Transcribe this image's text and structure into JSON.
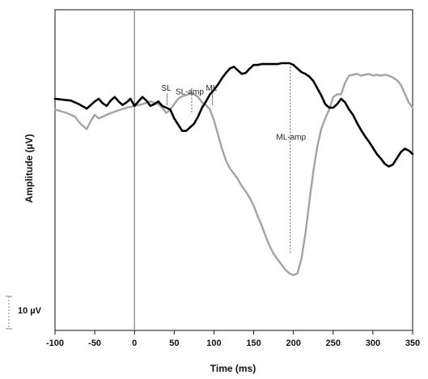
{
  "chart_data": {
    "type": "line",
    "xlabel": "Time (ms)",
    "ylabel": "Amplitude (µV)",
    "xlim": [
      -100,
      350
    ],
    "x_ticks": [
      -100,
      -50,
      0,
      50,
      100,
      150,
      200,
      250,
      300,
      350
    ],
    "ylim": [
      -26,
      10
    ],
    "grid": false,
    "scale_bar": {
      "label": "10 µV",
      "value": 10
    },
    "vertical_reference_x": 0,
    "annotations": [
      {
        "label": "SL",
        "x": 40,
        "y": 0.9
      },
      {
        "label": "ML",
        "x": 97,
        "y": 0.9
      },
      {
        "label": "SL-amp",
        "x": 72,
        "y": 0.5
      },
      {
        "label": "ML-amp",
        "x": 196,
        "y": -4.6
      }
    ],
    "amp_markers": [
      {
        "x": 72,
        "from": 1.2,
        "to": -1.6
      },
      {
        "x": 196,
        "from": 3.6,
        "to": -17.4
      }
    ],
    "series": [
      {
        "color": "#000000",
        "x": [
          -100,
          -80,
          -70,
          -60,
          -55,
          -50,
          -45,
          -40,
          -35,
          -30,
          -25,
          -20,
          -15,
          -10,
          -5,
          0,
          5,
          10,
          15,
          20,
          25,
          30,
          35,
          40,
          45,
          50,
          55,
          60,
          65,
          70,
          75,
          80,
          85,
          90,
          95,
          100,
          105,
          110,
          115,
          120,
          125,
          130,
          135,
          140,
          145,
          150,
          155,
          160,
          165,
          170,
          175,
          180,
          185,
          190,
          195,
          200,
          205,
          210,
          215,
          220,
          225,
          230,
          235,
          240,
          245,
          250,
          255,
          260,
          265,
          270,
          275,
          280,
          285,
          290,
          295,
          300,
          305,
          310,
          315,
          320,
          325,
          330,
          335,
          340,
          345,
          350
        ],
        "y": [
          0.0,
          -0.2,
          -0.6,
          -1.1,
          -0.7,
          -0.3,
          0.0,
          -0.5,
          -0.8,
          -0.2,
          0.2,
          -0.3,
          -0.7,
          -0.4,
          0.0,
          -0.8,
          -0.3,
          0.2,
          -0.2,
          -0.8,
          -0.6,
          -0.3,
          -0.8,
          -1.0,
          -1.2,
          -2.2,
          -2.9,
          -3.6,
          -3.6,
          -3.2,
          -2.8,
          -2.0,
          -1.0,
          -0.3,
          0.5,
          1.0,
          1.6,
          2.3,
          2.9,
          3.4,
          3.6,
          3.2,
          2.8,
          2.9,
          3.4,
          3.8,
          3.8,
          3.9,
          3.9,
          3.9,
          3.9,
          3.9,
          4.0,
          4.0,
          4.0,
          3.8,
          3.4,
          3.0,
          2.8,
          2.5,
          2.0,
          1.2,
          0.4,
          -0.6,
          -1.0,
          -1.0,
          -0.6,
          0.0,
          -0.4,
          -1.2,
          -1.8,
          -2.7,
          -3.5,
          -4.2,
          -4.8,
          -5.5,
          -6.2,
          -6.7,
          -7.3,
          -7.6,
          -7.4,
          -6.7,
          -6.0,
          -5.6,
          -5.8,
          -6.2
        ]
      },
      {
        "color": "#a3a3a3",
        "x": [
          -100,
          -85,
          -75,
          -68,
          -60,
          -55,
          -50,
          -45,
          -40,
          -30,
          -20,
          -10,
          0,
          10,
          20,
          30,
          35,
          40,
          45,
          50,
          55,
          60,
          65,
          70,
          75,
          80,
          85,
          90,
          95,
          100,
          105,
          110,
          115,
          120,
          125,
          130,
          135,
          140,
          145,
          150,
          155,
          160,
          165,
          170,
          175,
          180,
          185,
          190,
          195,
          200,
          205,
          210,
          215,
          220,
          225,
          230,
          235,
          240,
          245,
          250,
          255,
          260,
          265,
          270,
          275,
          280,
          285,
          290,
          295,
          300,
          305,
          310,
          315,
          320,
          325,
          330,
          335,
          340,
          345,
          350
        ],
        "y": [
          -1.2,
          -1.6,
          -2.0,
          -2.8,
          -3.4,
          -2.5,
          -1.8,
          -2.2,
          -2.0,
          -1.6,
          -1.3,
          -1.0,
          -0.8,
          -0.6,
          -0.3,
          -0.6,
          -1.0,
          -1.6,
          -1.2,
          -0.6,
          0.0,
          0.3,
          0.4,
          0.6,
          0.5,
          0.2,
          -0.4,
          -0.7,
          -1.2,
          -2.4,
          -4.0,
          -5.6,
          -6.9,
          -7.8,
          -8.4,
          -9.0,
          -9.8,
          -10.4,
          -11.1,
          -12.0,
          -13.2,
          -14.2,
          -15.4,
          -16.5,
          -17.4,
          -18.0,
          -18.6,
          -19.2,
          -19.6,
          -19.8,
          -19.6,
          -18.0,
          -15.2,
          -11.6,
          -8.2,
          -5.4,
          -3.4,
          -2.2,
          -1.2,
          0.2,
          0.5,
          0.5,
          1.8,
          2.6,
          2.7,
          2.8,
          2.6,
          2.7,
          2.8,
          2.6,
          2.7,
          2.6,
          2.7,
          2.6,
          2.4,
          2.1,
          1.6,
          0.6,
          -0.4,
          -1.0
        ]
      }
    ]
  }
}
